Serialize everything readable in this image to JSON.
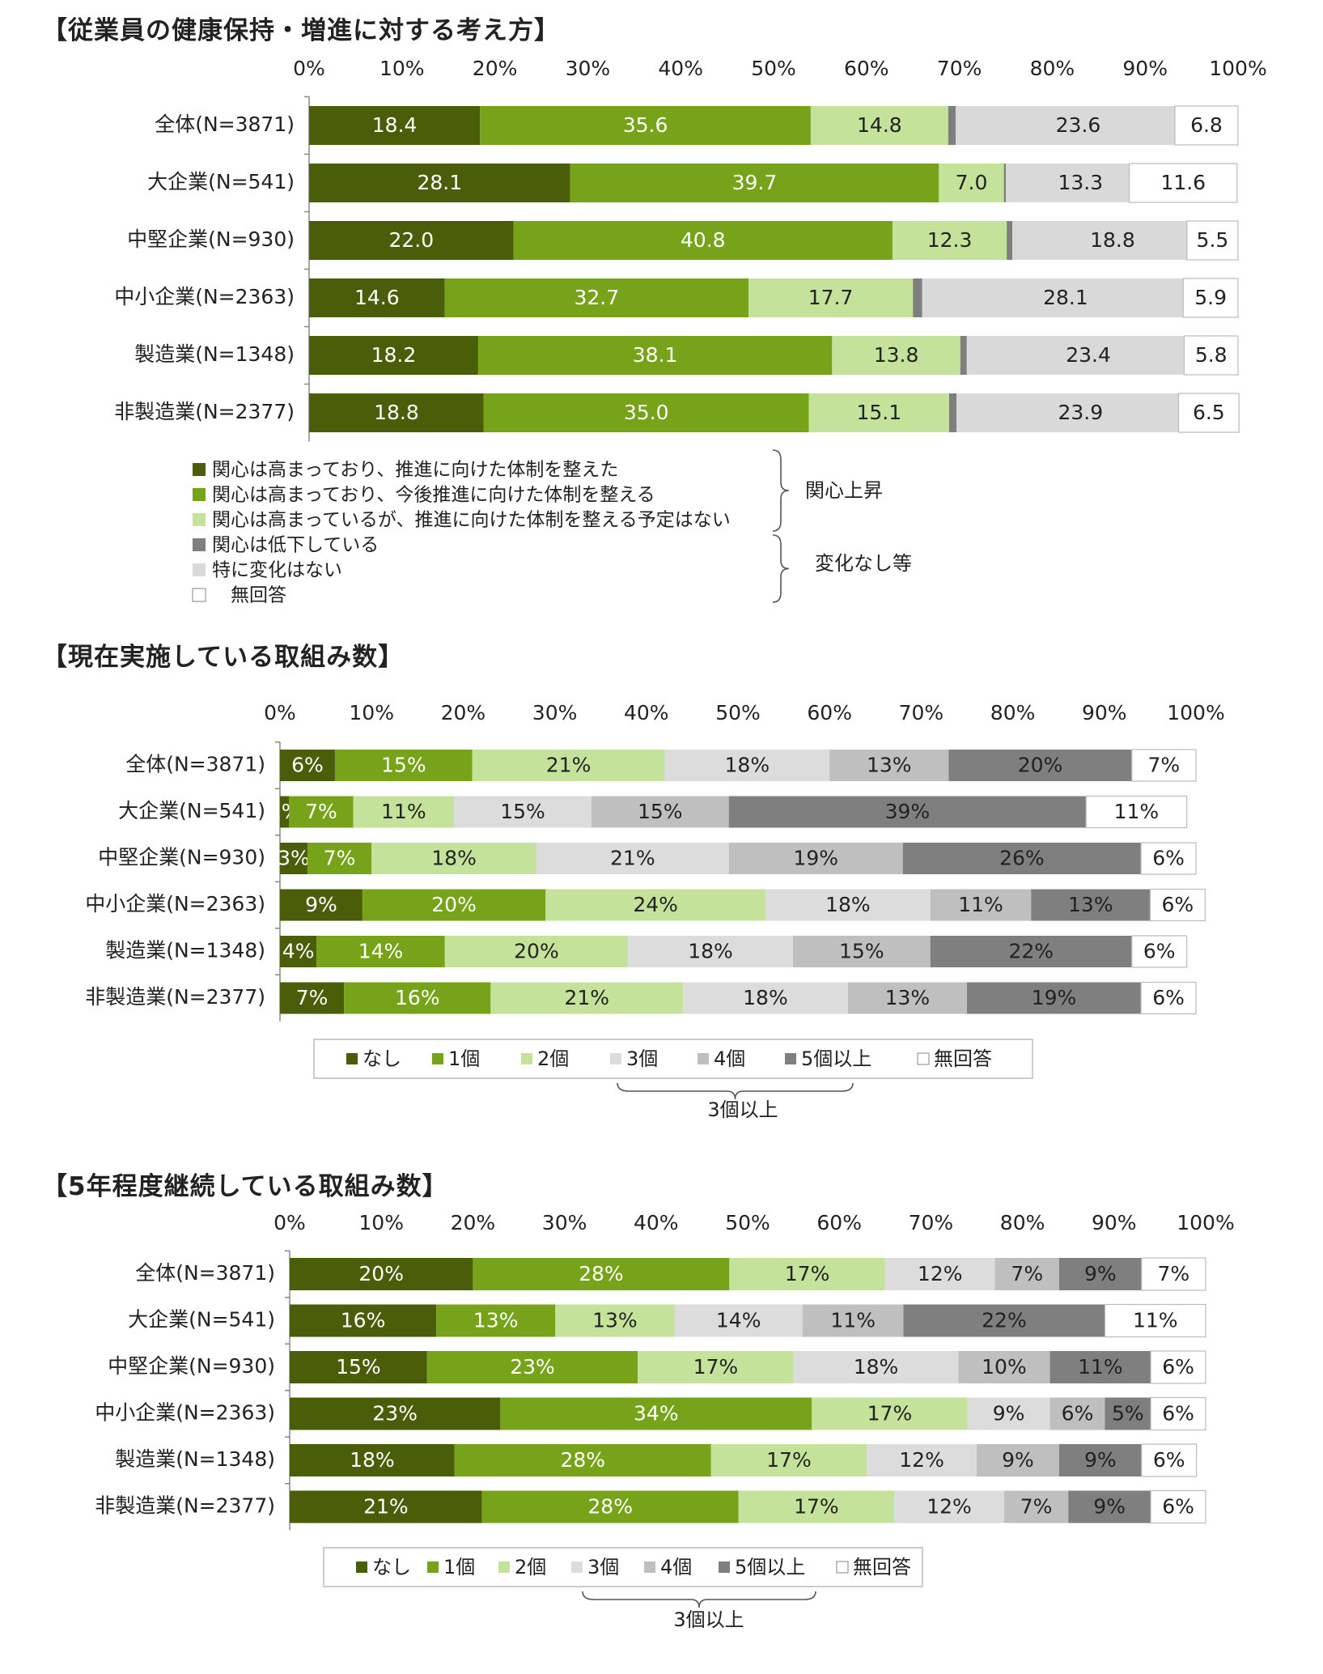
{
  "chart_data": [
    {
      "type": "bar",
      "stacked": true,
      "orientation": "horizontal",
      "title": "【従業員の健康保持・増進に対する考え方】",
      "xlim": [
        0,
        100
      ],
      "xticks": [
        "0%",
        "10%",
        "20%",
        "30%",
        "40%",
        "50%",
        "60%",
        "70%",
        "80%",
        "90%",
        "100%"
      ],
      "categories": [
        "全体(N=3871)",
        "大企業(N=541)",
        "中堅企業(N=930)",
        "中小企業(N=2363)",
        "製造業(N=1348)",
        "非製造業(N=2377)"
      ],
      "series": [
        {
          "name": "関心は高まっており、推進に向けた体制を整えた",
          "color": "#4a5e0a",
          "values": [
            18.4,
            28.1,
            22.0,
            14.6,
            18.2,
            18.8
          ],
          "labels": [
            "18.4",
            "28.1",
            "22.0",
            "14.6",
            "18.2",
            "18.8"
          ]
        },
        {
          "name": "関心は高まっており、今後推進に向けた体制を整える",
          "color": "#76a31a",
          "values": [
            35.6,
            39.7,
            40.8,
            32.7,
            38.1,
            35.0
          ],
          "labels": [
            "35.6",
            "39.7",
            "40.8",
            "32.7",
            "38.1",
            "35.0"
          ]
        },
        {
          "name": "関心は高まっているが、推進に向けた体制を整える予定はない",
          "color": "#c4e29a",
          "values": [
            14.8,
            7.0,
            12.3,
            17.7,
            13.8,
            15.1
          ],
          "labels": [
            "14.8",
            "7.0",
            "12.3",
            "17.7",
            "13.8",
            "15.1"
          ]
        },
        {
          "name": "関心は低下している",
          "color": "#7f7f7f",
          "values": [
            0.8,
            0.2,
            0.6,
            1.0,
            0.7,
            0.8
          ],
          "labels": [
            "0.8",
            "0.2",
            "0.6",
            "1.0",
            "0.7",
            "0.8"
          ]
        },
        {
          "name": "特に変化はない",
          "color": "#d9d9d9",
          "values": [
            23.6,
            13.3,
            18.8,
            28.1,
            23.4,
            23.9
          ],
          "labels": [
            "23.6",
            "13.3",
            "18.8",
            "28.1",
            "23.4",
            "23.9"
          ]
        },
        {
          "name": "無回答",
          "color": "#ffffff",
          "values": [
            6.8,
            11.6,
            5.5,
            5.9,
            5.8,
            6.5
          ],
          "labels": [
            "6.8",
            "11.6",
            "5.5",
            "5.9",
            "5.8",
            "6.5"
          ]
        }
      ],
      "legend_groups": [
        "関心上昇",
        "変化なし等"
      ],
      "legend_placement": "bottom"
    },
    {
      "type": "bar",
      "stacked": true,
      "orientation": "horizontal",
      "title": "【現在実施している取組み数】",
      "xlim": [
        0,
        100
      ],
      "xticks": [
        "0%",
        "10%",
        "20%",
        "30%",
        "40%",
        "50%",
        "60%",
        "70%",
        "80%",
        "90%",
        "100%"
      ],
      "categories": [
        "全体(N=3871)",
        "大企業(N=541)",
        "中堅企業(N=930)",
        "中小企業(N=2363)",
        "製造業(N=1348)",
        "非製造業(N=2377)"
      ],
      "series": [
        {
          "name": "なし",
          "color": "#4a5e0a",
          "values": [
            6,
            1,
            3,
            9,
            4,
            7
          ],
          "labels": [
            "6%",
            "1%",
            "3%",
            "9%",
            "4%",
            "7%"
          ]
        },
        {
          "name": "1個",
          "color": "#76a31a",
          "values": [
            15,
            7,
            7,
            20,
            14,
            16
          ],
          "labels": [
            "15%",
            "7%",
            "7%",
            "20%",
            "14%",
            "16%"
          ]
        },
        {
          "name": "2個",
          "color": "#c4e29a",
          "values": [
            21,
            11,
            18,
            24,
            20,
            21
          ],
          "labels": [
            "21%",
            "11%",
            "18%",
            "24%",
            "20%",
            "21%"
          ]
        },
        {
          "name": "3個",
          "color": "#dcdcdc",
          "values": [
            18,
            15,
            21,
            18,
            18,
            18
          ],
          "labels": [
            "18%",
            "15%",
            "21%",
            "18%",
            "18%",
            "18%"
          ]
        },
        {
          "name": "4個",
          "color": "#bfbfbf",
          "values": [
            13,
            15,
            19,
            11,
            15,
            13
          ],
          "labels": [
            "13%",
            "15%",
            "19%",
            "11%",
            "15%",
            "13%"
          ]
        },
        {
          "name": "5個以上",
          "color": "#7f7f7f",
          "values": [
            20,
            39,
            26,
            13,
            22,
            19
          ],
          "labels": [
            "20%",
            "39%",
            "26%",
            "13%",
            "22%",
            "19%"
          ]
        },
        {
          "name": "無回答",
          "color": "#ffffff",
          "values": [
            7,
            11,
            6,
            6,
            6,
            6
          ],
          "labels": [
            "7%",
            "11%",
            "6%",
            "6%",
            "6%",
            "6%"
          ]
        }
      ],
      "brace_label": "3個以上",
      "legend_placement": "bottom"
    },
    {
      "type": "bar",
      "stacked": true,
      "orientation": "horizontal",
      "title": "【5年程度継続している取組み数】",
      "xlim": [
        0,
        100
      ],
      "xticks": [
        "0%",
        "10%",
        "20%",
        "30%",
        "40%",
        "50%",
        "60%",
        "70%",
        "80%",
        "90%",
        "100%"
      ],
      "categories": [
        "全体(N=3871)",
        "大企業(N=541)",
        "中堅企業(N=930)",
        "中小企業(N=2363)",
        "製造業(N=1348)",
        "非製造業(N=2377)"
      ],
      "series": [
        {
          "name": "なし",
          "color": "#4a5e0a",
          "values": [
            20,
            16,
            15,
            23,
            18,
            21
          ],
          "labels": [
            "20%",
            "16%",
            "15%",
            "23%",
            "18%",
            "21%"
          ]
        },
        {
          "name": "1個",
          "color": "#76a31a",
          "values": [
            28,
            13,
            23,
            34,
            28,
            28
          ],
          "labels": [
            "28%",
            "13%",
            "23%",
            "34%",
            "28%",
            "28%"
          ]
        },
        {
          "name": "2個",
          "color": "#c4e29a",
          "values": [
            17,
            13,
            17,
            17,
            17,
            17
          ],
          "labels": [
            "17%",
            "13%",
            "17%",
            "17%",
            "17%",
            "17%"
          ]
        },
        {
          "name": "3個",
          "color": "#dcdcdc",
          "values": [
            12,
            14,
            18,
            9,
            12,
            12
          ],
          "labels": [
            "12%",
            "14%",
            "18%",
            "9%",
            "12%",
            "12%"
          ]
        },
        {
          "name": "4個",
          "color": "#bfbfbf",
          "values": [
            7,
            11,
            10,
            6,
            9,
            7
          ],
          "labels": [
            "7%",
            "11%",
            "10%",
            "6%",
            "9%",
            "7%"
          ]
        },
        {
          "name": "5個以上",
          "color": "#7f7f7f",
          "values": [
            9,
            22,
            11,
            5,
            9,
            9
          ],
          "labels": [
            "9%",
            "22%",
            "11%",
            "5%",
            "9%",
            "9%"
          ]
        },
        {
          "name": "無回答",
          "color": "#ffffff",
          "values": [
            7,
            11,
            6,
            6,
            6,
            6
          ],
          "labels": [
            "7%",
            "11%",
            "6%",
            "6%",
            "6%",
            "6%"
          ]
        }
      ],
      "brace_label": "3個以上",
      "legend_placement": "bottom"
    }
  ]
}
